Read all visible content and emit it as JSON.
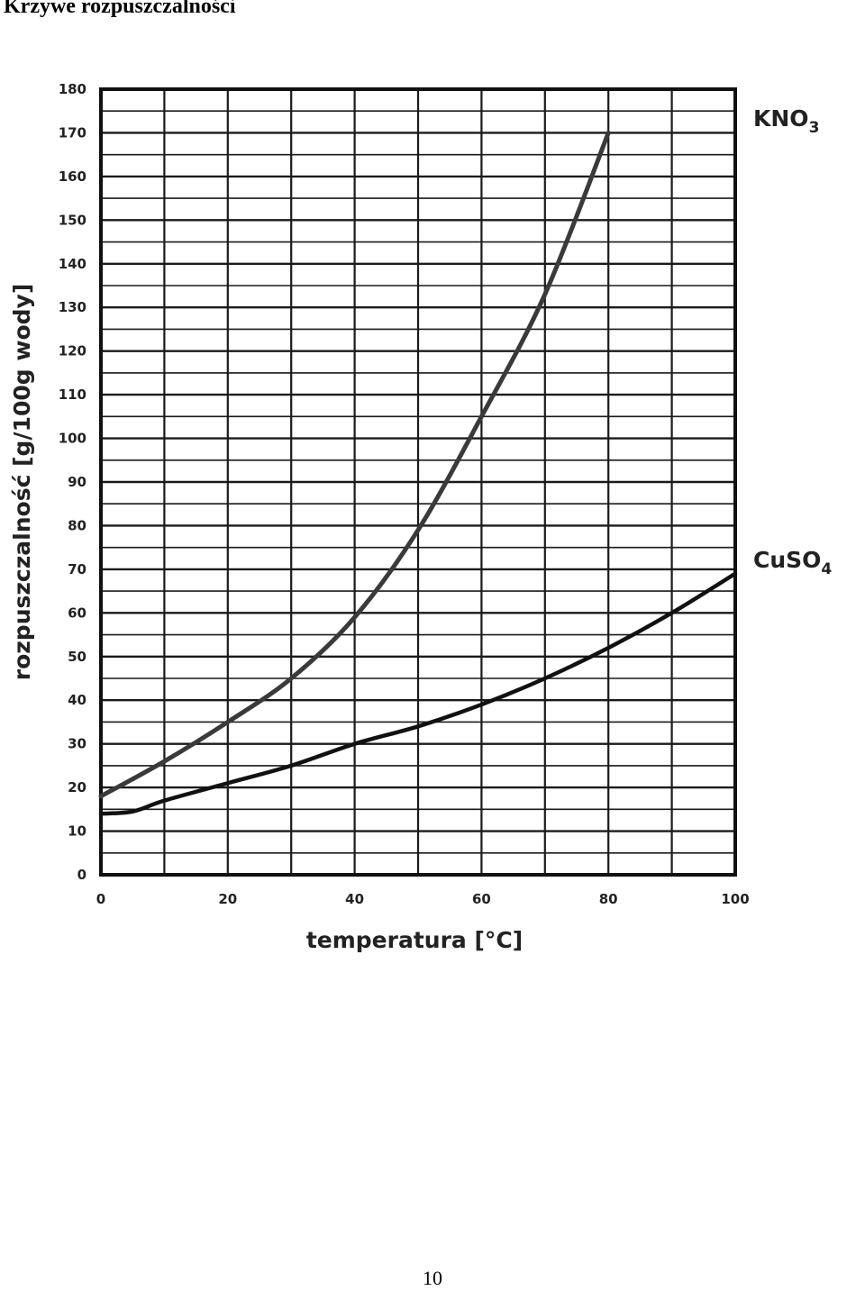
{
  "page": {
    "heading": "Krzywe rozpuszczalności",
    "page_number": "10"
  },
  "chart_data": {
    "type": "line",
    "title": "",
    "xlabel": "temperatura [°C]",
    "ylabel": "rozpuszczalność [g/100g wody]",
    "xlim": [
      0,
      100
    ],
    "ylim": [
      0,
      180
    ],
    "x_ticks": [
      "0",
      "20",
      "40",
      "60",
      "80",
      "100"
    ],
    "y_ticks": [
      "0",
      "10",
      "20",
      "30",
      "40",
      "50",
      "60",
      "70",
      "80",
      "90",
      "100",
      "110",
      "120",
      "130",
      "140",
      "150",
      "160",
      "170",
      "180"
    ],
    "grid": true,
    "series": [
      {
        "name": "KNO3",
        "label_main": "KNO",
        "label_sub": "3",
        "color": "#3a3a3a",
        "x": [
          0,
          10,
          20,
          30,
          40,
          50,
          60,
          70,
          80
        ],
        "y": [
          18,
          26,
          35,
          45,
          59,
          79,
          105,
          133,
          170
        ]
      },
      {
        "name": "CuSO4",
        "label_main": "CuSO",
        "label_sub": "4",
        "color": "#111111",
        "x": [
          0,
          5,
          10,
          20,
          30,
          40,
          50,
          60,
          70,
          80,
          90,
          100
        ],
        "y": [
          14,
          14.5,
          17,
          21,
          25,
          30,
          34,
          39,
          45,
          52,
          60,
          69
        ]
      }
    ]
  }
}
